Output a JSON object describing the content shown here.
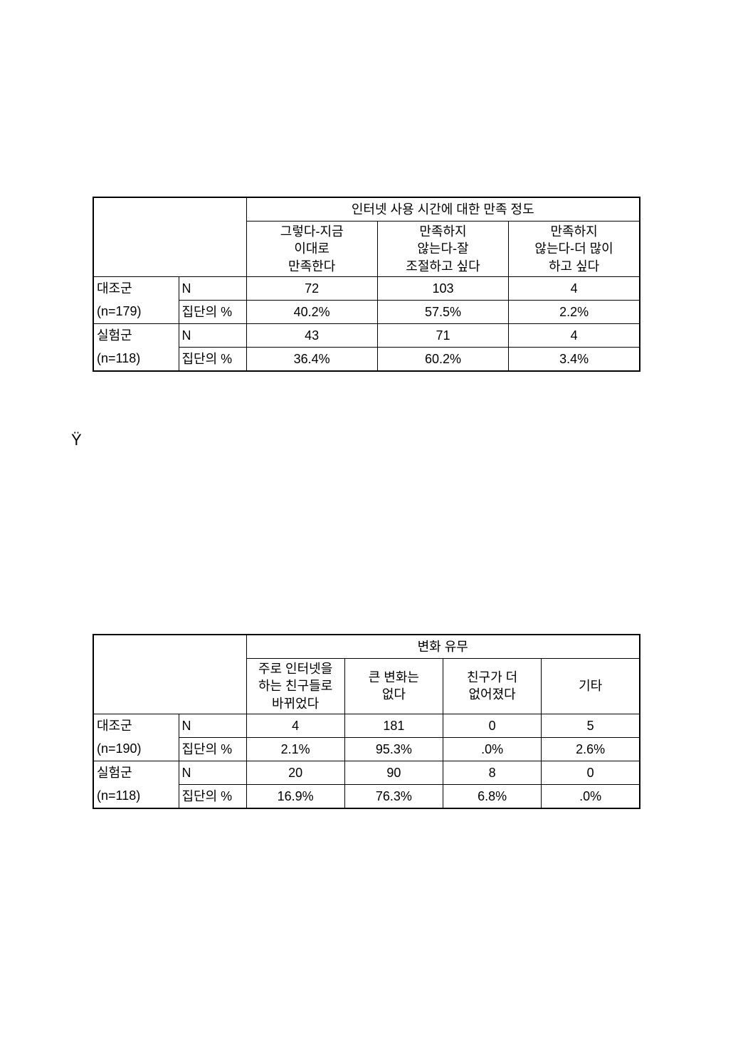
{
  "table1": {
    "header_group": "인터넷 사용 시간에 대한 만족 정도",
    "columns": [
      "그렇다-지금\n이대로\n만족한다",
      "만족하지\n않는다-잘\n조절하고 싶다",
      "만족하지\n않는다-더 많이\n하고 싶다"
    ],
    "rows": [
      {
        "label_line1": "대조군",
        "label_line2": "(n=179)",
        "metric1": "N",
        "metric2": "집단의 %",
        "n": [
          "72",
          "103",
          "4"
        ],
        "pct": [
          "40.2%",
          "57.5%",
          "2.2%"
        ]
      },
      {
        "label_line1": "실험군",
        "label_line2": "(n=118)",
        "metric1": "N",
        "metric2": "집단의 %",
        "n": [
          "43",
          "71",
          "4"
        ],
        "pct": [
          "36.4%",
          "60.2%",
          "3.4%"
        ]
      }
    ]
  },
  "marker": "Ÿ",
  "table2": {
    "header_group": "변화 유무",
    "columns": [
      "주로 인터넷을\n하는 친구들로\n바뀌었다",
      "큰 변화는\n없다",
      "친구가 더\n없어졌다",
      "기타"
    ],
    "rows": [
      {
        "label_line1": "대조군",
        "label_line2": "(n=190)",
        "metric1": "N",
        "metric2": "집단의 %",
        "n": [
          "4",
          "181",
          "0",
          "5"
        ],
        "pct": [
          "2.1%",
          "95.3%",
          ".0%",
          "2.6%"
        ]
      },
      {
        "label_line1": "실험군",
        "label_line2": "(n=118)",
        "metric1": "N",
        "metric2": "집단의 %",
        "n": [
          "20",
          "90",
          "8",
          "0"
        ],
        "pct": [
          "16.9%",
          "76.3%",
          "6.8%",
          ".0%"
        ]
      }
    ]
  }
}
